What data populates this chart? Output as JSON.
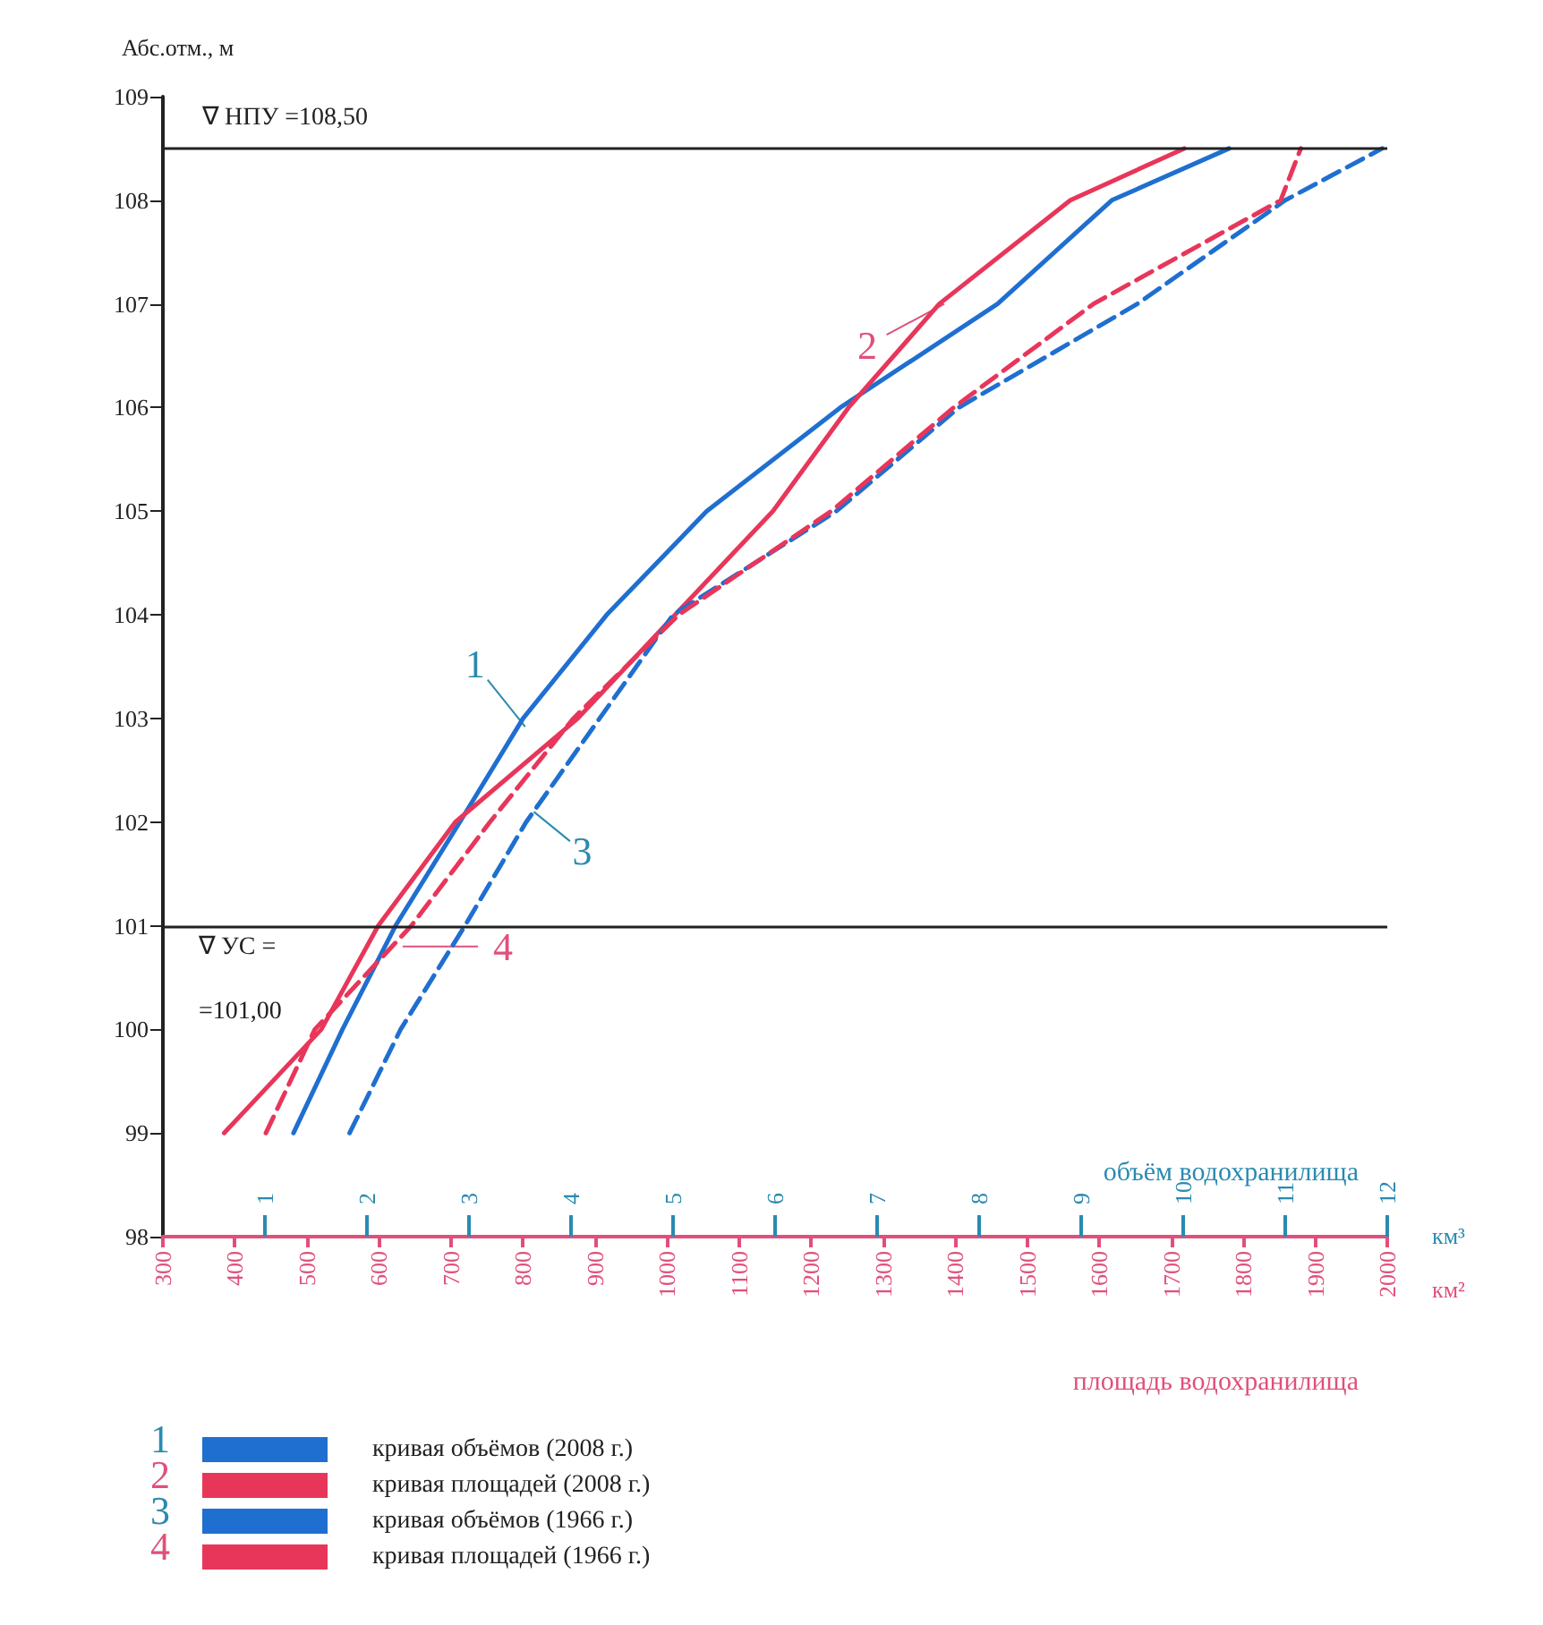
{
  "chart_data": {
    "type": "line",
    "ylabel": "Абс.отм., м",
    "xlabel": "площадь водохранилища",
    "x2label": "объём водохранилища",
    "xlim": [
      300,
      2000
    ],
    "xticks": [
      300,
      400,
      500,
      600,
      700,
      800,
      900,
      1000,
      1100,
      1200,
      1300,
      1400,
      1500,
      1600,
      1700,
      1800,
      1900,
      2000
    ],
    "x2lim": [
      0,
      12
    ],
    "x2ticks": [
      1,
      2,
      3,
      4,
      5,
      6,
      7,
      8,
      9,
      10,
      11,
      12
    ],
    "ylim": [
      98,
      109
    ],
    "yticks": [
      98,
      99,
      100,
      101,
      102,
      103,
      104,
      105,
      106,
      107,
      108,
      109
    ],
    "grid": false,
    "legend": "bottom",
    "marker": "none",
    "series": [
      {
        "name": "кривая объёмов (2008 г.)",
        "color": "#1f6fd0",
        "axis": "x2",
        "line_style": "solid",
        "x": [
          1.28,
          1.76,
          2.28,
          2.91,
          3.53,
          4.35,
          5.33,
          6.64,
          8.18,
          9.3,
          10.45
        ],
        "values": [
          99,
          100,
          101,
          102,
          103,
          104,
          105,
          106,
          107,
          108,
          108.5
        ]
      },
      {
        "name": "кривая площадей (2008 г.)",
        "color": "#e8365a",
        "line_style": "solid",
        "x": [
          385,
          520,
          599,
          706,
          876,
          1011,
          1147,
          1252,
          1378,
          1560,
          1718
        ],
        "values": [
          99,
          100,
          101,
          102,
          103,
          104,
          105,
          106,
          107,
          108,
          108.5
        ]
      },
      {
        "name": "кривая объёмов (1966 г.)",
        "color": "#1f6fd0",
        "axis": "x2",
        "line_style": "dashed",
        "x": [
          1.83,
          2.33,
          2.96,
          3.56,
          4.28,
          5.0,
          6.6,
          7.8,
          9.55,
          11.0,
          11.95
        ],
        "values": [
          99,
          100,
          101,
          102,
          103,
          104,
          105,
          106,
          107,
          108,
          108.5
        ]
      },
      {
        "name": "кривая площадей (1966 г.)",
        "color": "#e8365a",
        "line_style": "dashed",
        "x": [
          443,
          511,
          645,
          754,
          870,
          1016,
          1228,
          1398,
          1592,
          1852,
          1880
        ],
        "values": [
          99,
          100,
          101,
          102,
          103,
          104,
          105,
          106,
          107,
          108,
          108.5
        ]
      }
    ],
    "ref_lines": [
      {
        "axis": "y",
        "value": 108.5,
        "label": "∇ НПУ =108,50",
        "color": "#222222"
      },
      {
        "axis": "y",
        "value": 101,
        "label": "∇ УС =\n=101,00",
        "color": "#222222"
      }
    ],
    "annotations": [
      {
        "text": "1",
        "x": 803,
        "y": 102.92
      },
      {
        "text": "2",
        "x": 1385,
        "y": 107.0
      },
      {
        "text": "3",
        "x": 815,
        "y": 102.1
      },
      {
        "text": "4",
        "x": 633,
        "y": 100.8
      },
      "км³",
      "км²",
      "1",
      "2",
      "3",
      "4"
    ]
  }
}
